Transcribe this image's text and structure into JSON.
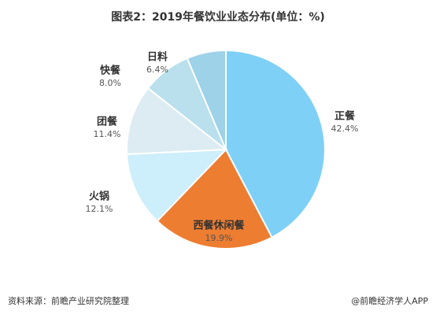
{
  "chart_data": {
    "type": "pie",
    "title": "图表2：2019年餐饮业业态分布(单位：%)",
    "categories": [
      "正餐",
      "西餐休闲餐",
      "火锅",
      "团餐",
      "快餐",
      "日料"
    ],
    "values": [
      42.4,
      19.9,
      12.1,
      11.4,
      8.0,
      6.4
    ],
    "value_labels": [
      "42.4%",
      "19.9%",
      "12.1%",
      "11.4%",
      "8.0%",
      "6.4%"
    ],
    "colors": [
      "#7fd0f7",
      "#ed7d31",
      "#cdeefb",
      "#dcecf2",
      "#b9e0ec",
      "#9dd2e9"
    ],
    "source": "资料来源：前瞻产业研究院整理",
    "credit": "@前瞻经济学人APP"
  }
}
